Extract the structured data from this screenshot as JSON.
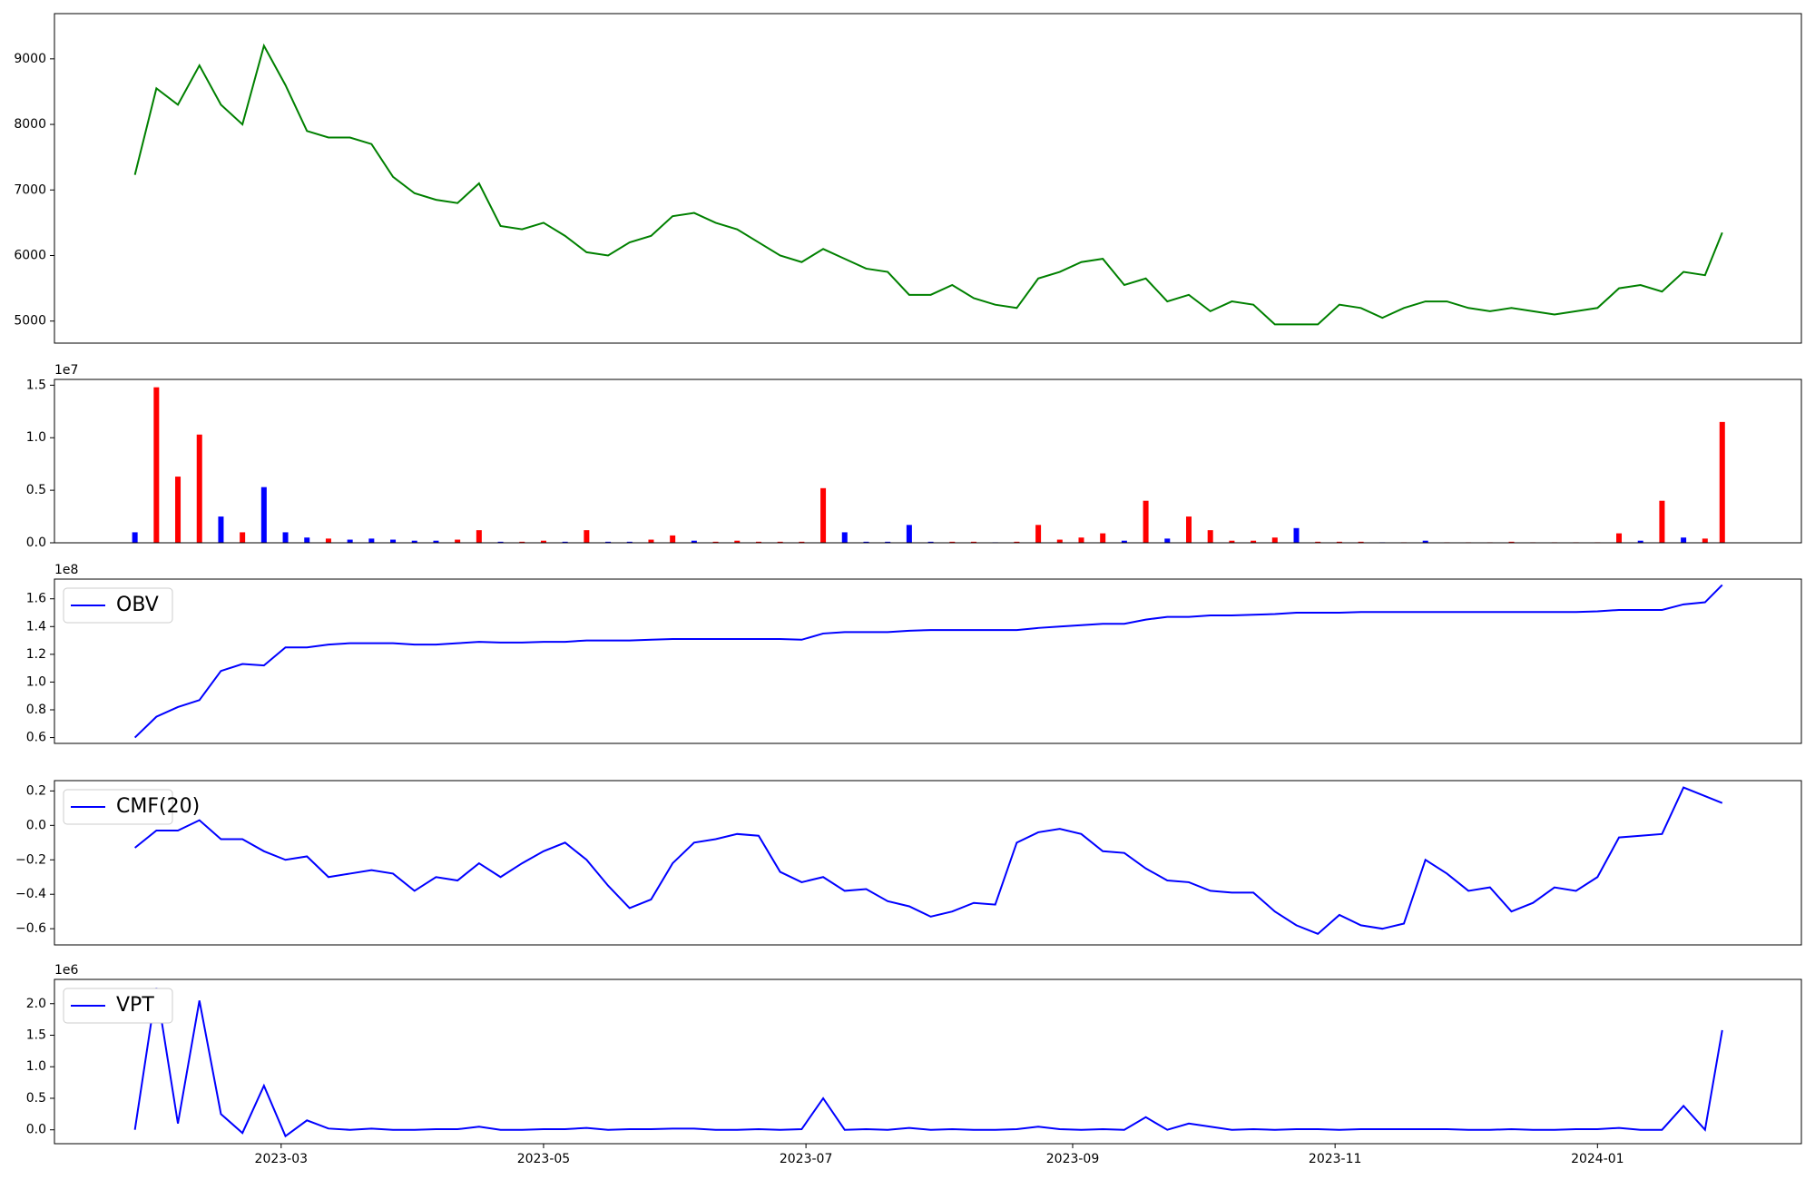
{
  "chart_data": [
    {
      "type": "line",
      "x": [
        19383,
        19388,
        19393,
        19398,
        19403,
        19408,
        19413,
        19418,
        19423,
        19428,
        19433,
        19438,
        19443,
        19448,
        19453,
        19458,
        19463,
        19468,
        19473,
        19478,
        19483,
        19488,
        19493,
        19498,
        19503,
        19508,
        19513,
        19518,
        19523,
        19528,
        19533,
        19538,
        19543,
        19548,
        19553,
        19558,
        19563,
        19568,
        19573,
        19578,
        19583,
        19588,
        19593,
        19598,
        19603,
        19608,
        19613,
        19618,
        19623,
        19628,
        19633,
        19638,
        19643,
        19648,
        19653,
        19658,
        19663,
        19668,
        19673,
        19678,
        19683,
        19688,
        19693,
        19698,
        19703,
        19708,
        19713,
        19718,
        19723,
        19728,
        19733,
        19738,
        19743,
        19748,
        19752
      ],
      "series": [
        {
          "color": "#008000",
          "values": [
            7230,
            8550,
            8300,
            8900,
            8300,
            8000,
            9200,
            8600,
            7900,
            7800,
            7800,
            7700,
            7200,
            6950,
            6850,
            6800,
            7100,
            6450,
            6400,
            6500,
            6300,
            6050,
            6000,
            6200,
            6300,
            6600,
            6650,
            6500,
            6400,
            6200,
            6000,
            5900,
            6100,
            5950,
            5800,
            5750,
            5400,
            5400,
            5550,
            5350,
            5250,
            5200,
            5650,
            5750,
            5900,
            5950,
            5550,
            5650,
            5300,
            5400,
            5150,
            5300,
            5250,
            4950,
            4950,
            4950,
            5250,
            5200,
            5050,
            5200,
            5300,
            5300,
            5200,
            5150,
            5200,
            5150,
            5100,
            5150,
            5200,
            5500,
            5550,
            5450,
            5750,
            5700,
            6350
          ]
        }
      ],
      "xlim": [
        19364.3,
        19770.4
      ],
      "ylim": [
        4664,
        9690
      ],
      "yticks": [
        5000,
        6000,
        7000,
        8000,
        9000
      ]
    },
    {
      "type": "bar",
      "x": [
        19383,
        19388,
        19393,
        19398,
        19403,
        19408,
        19413,
        19418,
        19423,
        19428,
        19433,
        19438,
        19443,
        19448,
        19453,
        19458,
        19463,
        19468,
        19473,
        19478,
        19483,
        19488,
        19493,
        19498,
        19503,
        19508,
        19513,
        19518,
        19523,
        19528,
        19533,
        19538,
        19543,
        19548,
        19553,
        19558,
        19563,
        19568,
        19573,
        19578,
        19583,
        19588,
        19593,
        19598,
        19603,
        19608,
        19613,
        19618,
        19623,
        19628,
        19633,
        19638,
        19643,
        19648,
        19653,
        19658,
        19663,
        19668,
        19673,
        19678,
        19683,
        19688,
        19693,
        19698,
        19703,
        19708,
        19713,
        19718,
        19723,
        19728,
        19733,
        19738,
        19743,
        19748,
        19752
      ],
      "series": [
        {
          "color": "#ff0000",
          "values": [
            null,
            14800000,
            6300000,
            10300000,
            null,
            1000000,
            null,
            null,
            null,
            400000,
            null,
            null,
            null,
            null,
            null,
            300000,
            1200000,
            null,
            100000,
            200000,
            null,
            1200000,
            null,
            null,
            300000,
            700000,
            null,
            100000,
            200000,
            100000,
            100000,
            100000,
            5200000,
            null,
            null,
            null,
            null,
            null,
            100000,
            100000,
            null,
            100000,
            1700000,
            300000,
            500000,
            900000,
            null,
            4000000,
            null,
            2500000,
            1200000,
            200000,
            200000,
            500000,
            null,
            100000,
            100000,
            100000,
            null,
            50000,
            null,
            50000,
            50000,
            50000,
            100000,
            50000,
            50000,
            50000,
            50000,
            900000,
            null,
            4000000,
            null,
            400000,
            11500000
          ]
        },
        {
          "color": "#0000ff",
          "values": [
            1000000,
            null,
            null,
            null,
            2500000,
            null,
            5300000,
            1000000,
            500000,
            null,
            300000,
            400000,
            300000,
            200000,
            200000,
            null,
            null,
            100000,
            null,
            null,
            100000,
            null,
            100000,
            100000,
            null,
            null,
            200000,
            null,
            null,
            null,
            null,
            null,
            null,
            1000000,
            100000,
            100000,
            1700000,
            100000,
            null,
            null,
            50000,
            null,
            null,
            null,
            null,
            null,
            200000,
            null,
            400000,
            null,
            null,
            null,
            null,
            null,
            1400000,
            null,
            null,
            null,
            50000,
            null,
            200000,
            null,
            null,
            null,
            null,
            null,
            null,
            null,
            null,
            null,
            200000,
            null,
            500000,
            null,
            null
          ]
        }
      ],
      "xlim": [
        19364.3,
        19770.4
      ],
      "ylim": [
        0,
        15550000
      ],
      "offset_label": "1e7",
      "yticks": [
        {
          "value": 0,
          "label": "0.0"
        },
        {
          "value": 5000000,
          "label": "0.5"
        },
        {
          "value": 10000000,
          "label": "1.0"
        },
        {
          "value": 15000000,
          "label": "1.5"
        }
      ]
    },
    {
      "type": "line",
      "x": [
        19383,
        19388,
        19393,
        19398,
        19403,
        19408,
        19413,
        19418,
        19423,
        19428,
        19433,
        19438,
        19443,
        19448,
        19453,
        19458,
        19463,
        19468,
        19473,
        19478,
        19483,
        19488,
        19493,
        19498,
        19503,
        19508,
        19513,
        19518,
        19523,
        19528,
        19533,
        19538,
        19543,
        19548,
        19553,
        19558,
        19563,
        19568,
        19573,
        19578,
        19583,
        19588,
        19593,
        19598,
        19603,
        19608,
        19613,
        19618,
        19623,
        19628,
        19633,
        19638,
        19643,
        19648,
        19653,
        19658,
        19663,
        19668,
        19673,
        19678,
        19683,
        19688,
        19693,
        19698,
        19703,
        19708,
        19713,
        19718,
        19723,
        19728,
        19733,
        19738,
        19743,
        19748,
        19752
      ],
      "series": [
        {
          "name": "OBV",
          "color": "#0000ff",
          "values": [
            60000000,
            75000000,
            82000000,
            87000000,
            108000000,
            113000000,
            112000000,
            125000000,
            125000000,
            127000000,
            128000000,
            128000000,
            128000000,
            127000000,
            127000000,
            128000000,
            129000000,
            128500000,
            128500000,
            129000000,
            129000000,
            130000000,
            130000000,
            130000000,
            130500000,
            131000000,
            131000000,
            131000000,
            131000000,
            131000000,
            131000000,
            130500000,
            135000000,
            136000000,
            136000000,
            136000000,
            137000000,
            137500000,
            137500000,
            137500000,
            137500000,
            137500000,
            139000000,
            140000000,
            141000000,
            142000000,
            142000000,
            145000000,
            147000000,
            147000000,
            148000000,
            148000000,
            148500000,
            149000000,
            150000000,
            150000000,
            150000000,
            150500000,
            150500000,
            150500000,
            150500000,
            150500000,
            150500000,
            150500000,
            150500000,
            150500000,
            150500000,
            150500000,
            151000000,
            152000000,
            152000000,
            152000000,
            156000000,
            157500000,
            170000000
          ]
        }
      ],
      "xlim": [
        19364.3,
        19770.4
      ],
      "ylim": [
        55800000,
        174200000
      ],
      "offset_label": "1e8",
      "legend": "upper left",
      "yticks": [
        {
          "value": 60000000,
          "label": "0.6"
        },
        {
          "value": 80000000,
          "label": "0.8"
        },
        {
          "value": 100000000,
          "label": "1.0"
        },
        {
          "value": 120000000,
          "label": "1.2"
        },
        {
          "value": 140000000,
          "label": "1.4"
        },
        {
          "value": 160000000,
          "label": "1.6"
        }
      ]
    },
    {
      "type": "line",
      "x": [
        19383,
        19388,
        19393,
        19398,
        19403,
        19408,
        19413,
        19418,
        19423,
        19428,
        19433,
        19438,
        19443,
        19448,
        19453,
        19458,
        19463,
        19468,
        19473,
        19478,
        19483,
        19488,
        19493,
        19498,
        19503,
        19508,
        19513,
        19518,
        19523,
        19528,
        19533,
        19538,
        19543,
        19548,
        19553,
        19558,
        19563,
        19568,
        19573,
        19578,
        19583,
        19588,
        19593,
        19598,
        19603,
        19608,
        19613,
        19618,
        19623,
        19628,
        19633,
        19638,
        19643,
        19648,
        19653,
        19658,
        19663,
        19668,
        19673,
        19678,
        19683,
        19688,
        19693,
        19698,
        19703,
        19708,
        19713,
        19718,
        19723,
        19728,
        19733,
        19738,
        19743,
        19748,
        19752
      ],
      "series": [
        {
          "name": "CMF(20)",
          "color": "#0000ff",
          "values": [
            -0.13,
            -0.03,
            -0.03,
            0.03,
            -0.08,
            -0.08,
            -0.15,
            -0.2,
            -0.18,
            -0.3,
            -0.28,
            -0.26,
            -0.28,
            -0.38,
            -0.3,
            -0.32,
            -0.22,
            -0.3,
            -0.22,
            -0.15,
            -0.1,
            -0.2,
            -0.35,
            -0.48,
            -0.43,
            -0.22,
            -0.1,
            -0.08,
            -0.05,
            -0.06,
            -0.27,
            -0.33,
            -0.3,
            -0.38,
            -0.37,
            -0.44,
            -0.47,
            -0.53,
            -0.5,
            -0.45,
            -0.46,
            -0.1,
            -0.04,
            -0.02,
            -0.05,
            -0.15,
            -0.16,
            -0.25,
            -0.32,
            -0.33,
            -0.38,
            -0.39,
            -0.39,
            -0.5,
            -0.58,
            -0.63,
            -0.52,
            -0.58,
            -0.6,
            -0.57,
            -0.2,
            -0.28,
            -0.38,
            -0.36,
            -0.5,
            -0.45,
            -0.36,
            -0.38,
            -0.3,
            -0.07,
            -0.06,
            -0.05,
            0.22,
            0.17,
            0.13
          ]
        }
      ],
      "xlim": [
        19364.3,
        19770.4
      ],
      "ylim": [
        -0.694,
        0.26
      ],
      "legend": "upper left",
      "yticks": [
        {
          "value": -0.6,
          "label": "−0.6"
        },
        {
          "value": -0.4,
          "label": "−0.4"
        },
        {
          "value": -0.2,
          "label": "−0.2"
        },
        {
          "value": 0,
          "label": "0.0"
        },
        0.2
      ]
    },
    {
      "type": "line",
      "x": [
        19383,
        19388,
        19393,
        19398,
        19403,
        19408,
        19413,
        19418,
        19423,
        19428,
        19433,
        19438,
        19443,
        19448,
        19453,
        19458,
        19463,
        19468,
        19473,
        19478,
        19483,
        19488,
        19493,
        19498,
        19503,
        19508,
        19513,
        19518,
        19523,
        19528,
        19533,
        19538,
        19543,
        19548,
        19553,
        19558,
        19563,
        19568,
        19573,
        19578,
        19583,
        19588,
        19593,
        19598,
        19603,
        19608,
        19613,
        19618,
        19623,
        19628,
        19633,
        19638,
        19643,
        19648,
        19653,
        19658,
        19663,
        19668,
        19673,
        19678,
        19683,
        19688,
        19693,
        19698,
        19703,
        19708,
        19713,
        19718,
        19723,
        19728,
        19733,
        19738,
        19743,
        19748,
        19752
      ],
      "series": [
        {
          "name": "VPT",
          "color": "#0000ff",
          "values": [
            0,
            2250000,
            100000,
            2050000,
            250000,
            -50000,
            700000,
            -100000,
            150000,
            20000,
            0,
            20000,
            0,
            0,
            10000,
            10000,
            50000,
            0,
            0,
            10000,
            10000,
            30000,
            0,
            10000,
            10000,
            20000,
            20000,
            0,
            0,
            10000,
            0,
            10000,
            500000,
            0,
            10000,
            0,
            30000,
            0,
            10000,
            0,
            0,
            10000,
            50000,
            10000,
            0,
            10000,
            0,
            200000,
            0,
            100000,
            50000,
            0,
            10000,
            0,
            10000,
            10000,
            0,
            10000,
            10000,
            10000,
            10000,
            10000,
            0,
            0,
            10000,
            0,
            0,
            10000,
            10000,
            30000,
            0,
            0,
            380000,
            0,
            1580000
          ]
        }
      ],
      "xlim": [
        19364.3,
        19770.4
      ],
      "ylim": [
        -220000,
        2385000
      ],
      "offset_label": "1e6",
      "legend": "upper left",
      "yticks": [
        {
          "value": 0,
          "label": "0.0"
        },
        {
          "value": 500000,
          "label": "0.5"
        },
        {
          "value": 1000000,
          "label": "1.0"
        },
        {
          "value": 1500000,
          "label": "1.5"
        },
        {
          "value": 2000000,
          "label": "2.0"
        }
      ],
      "xticks": [
        {
          "value": 19417,
          "label": "2023-03"
        },
        {
          "value": 19478,
          "label": "2023-05"
        },
        {
          "value": 19539,
          "label": "2023-07"
        },
        {
          "value": 19601,
          "label": "2023-09"
        },
        {
          "value": 19662,
          "label": "2023-11"
        },
        {
          "value": 19723,
          "label": "2024-01"
        }
      ]
    }
  ]
}
